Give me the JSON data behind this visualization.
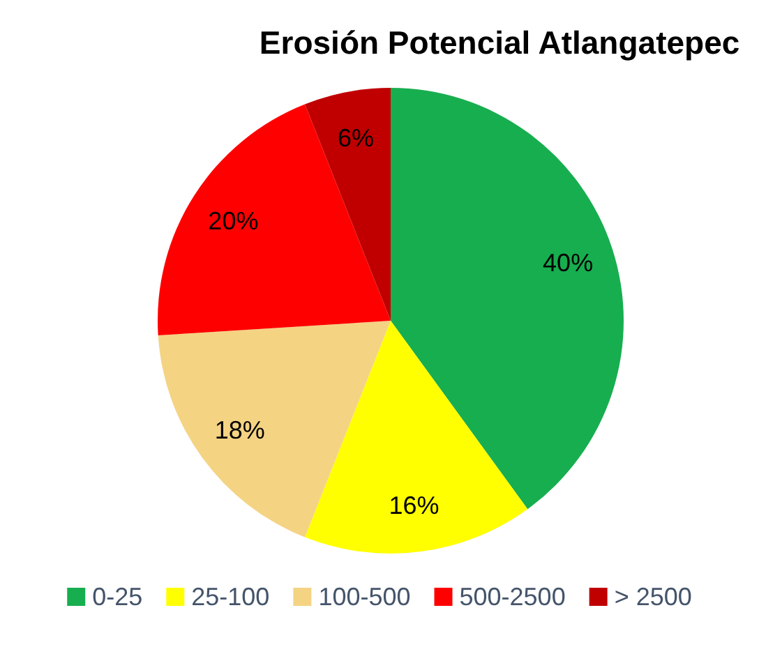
{
  "chart_data": {
    "type": "pie",
    "title": "Erosión Potencial Atlangatepec",
    "categories": [
      "0-25",
      "25-100",
      "100-500",
      "500-2500",
      "> 2500"
    ],
    "values": [
      40,
      16,
      18,
      20,
      6
    ],
    "colors": [
      "#17ae4f",
      "#ffff00",
      "#f4d383",
      "#ff0000",
      "#c00000"
    ],
    "value_labels": [
      "40%",
      "16%",
      "18%",
      "20%",
      "6%"
    ],
    "legend": "bottom"
  }
}
